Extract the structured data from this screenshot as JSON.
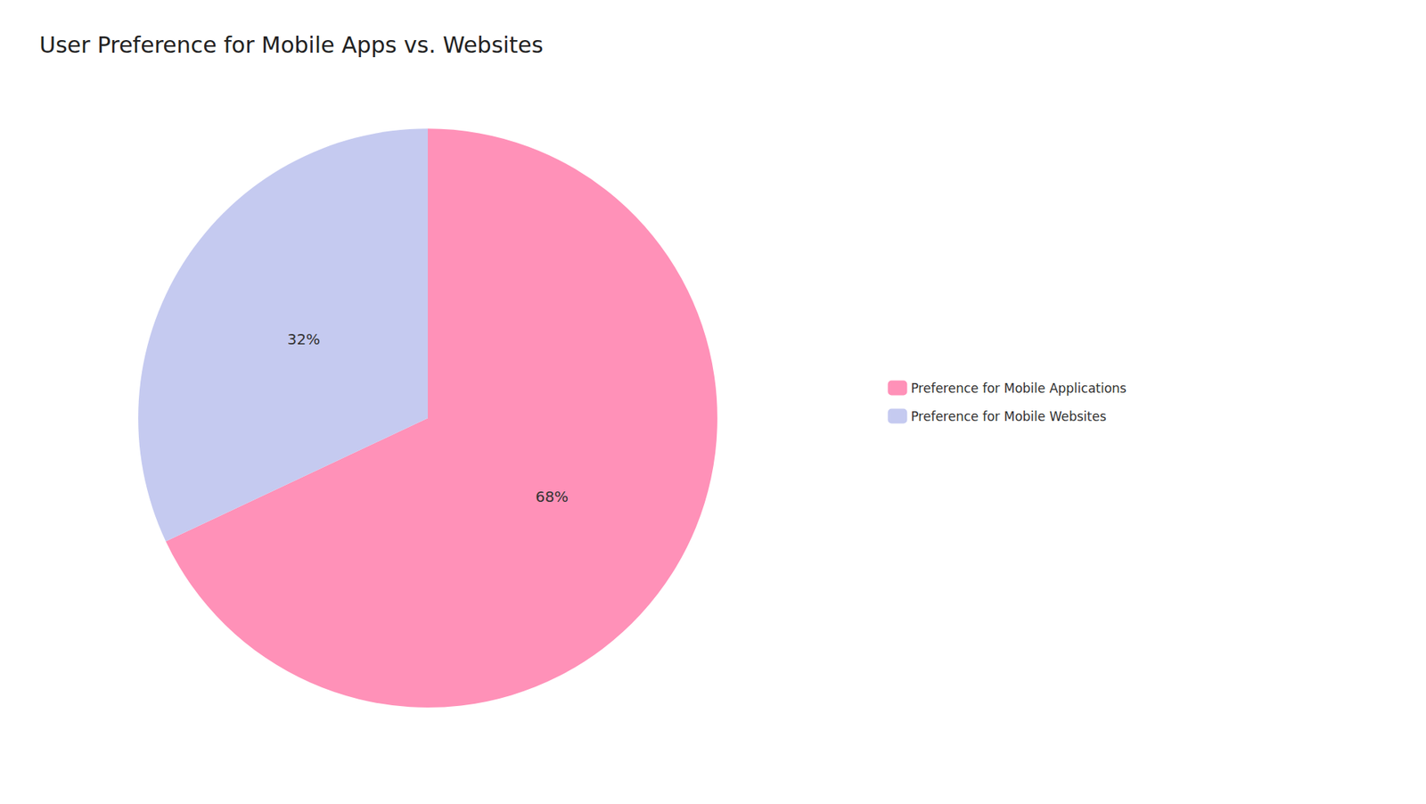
{
  "chart_data": {
    "type": "pie",
    "title": "User Preference for Mobile Apps vs. Websites",
    "categories": [
      "Preference for Mobile Applications",
      "Preference for Mobile Websites"
    ],
    "values": [
      68,
      32
    ],
    "value_labels": [
      "68%",
      "32%"
    ],
    "colors": [
      "#FF91B8",
      "#C5CAF0"
    ],
    "data_labels": true,
    "legend": "right"
  }
}
